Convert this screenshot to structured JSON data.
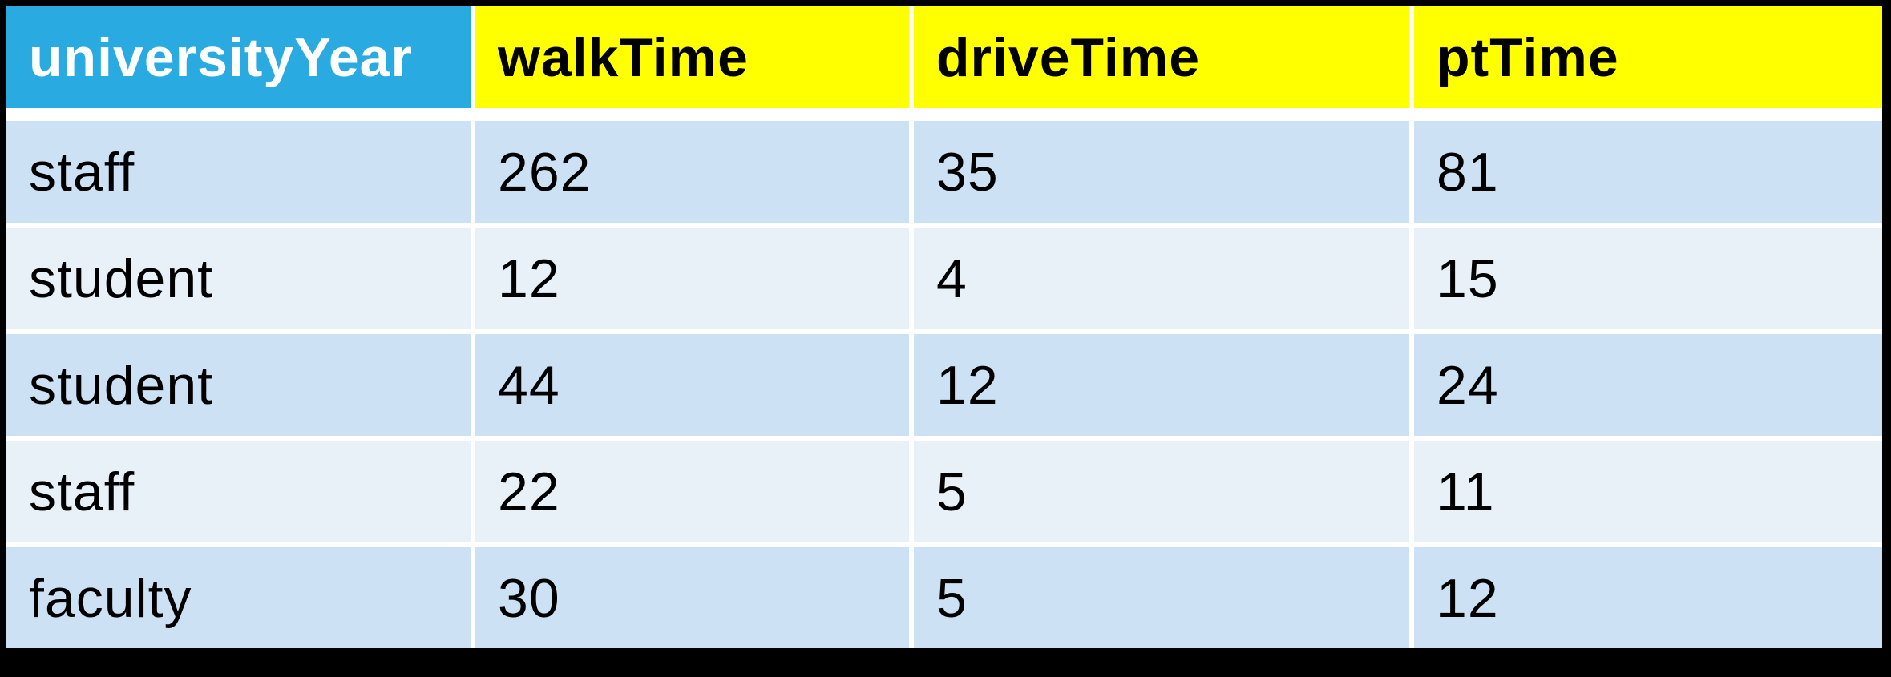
{
  "colors": {
    "frame": "#000000",
    "header_first_bg": "#29ABE2",
    "header_first_text": "#FFFFFF",
    "header_bg": "#FFFF00",
    "header_text": "#000000",
    "row_dark": "#CCE1F3",
    "row_light": "#E8F0F8",
    "gap": "#FFFFFF",
    "body_text": "#000000"
  },
  "chart_data": {
    "type": "table",
    "title": "",
    "columns": [
      "universityYear",
      "walkTime",
      "driveTime",
      "ptTime"
    ],
    "rows": [
      [
        "staff",
        "262",
        "35",
        "81"
      ],
      [
        "student",
        "12",
        "4",
        "15"
      ],
      [
        "student",
        "44",
        "12",
        "24"
      ],
      [
        "staff",
        "22",
        "5",
        "11"
      ],
      [
        "faculty",
        "30",
        "5",
        "12"
      ]
    ],
    "layout_hints": {
      "banded_rows": true,
      "band_order": [
        "dark",
        "light",
        "dark",
        "light",
        "dark"
      ],
      "header_first_cell_accent": "cyan",
      "header_other_cells_accent": "yellow",
      "outer_frame": "black"
    }
  }
}
